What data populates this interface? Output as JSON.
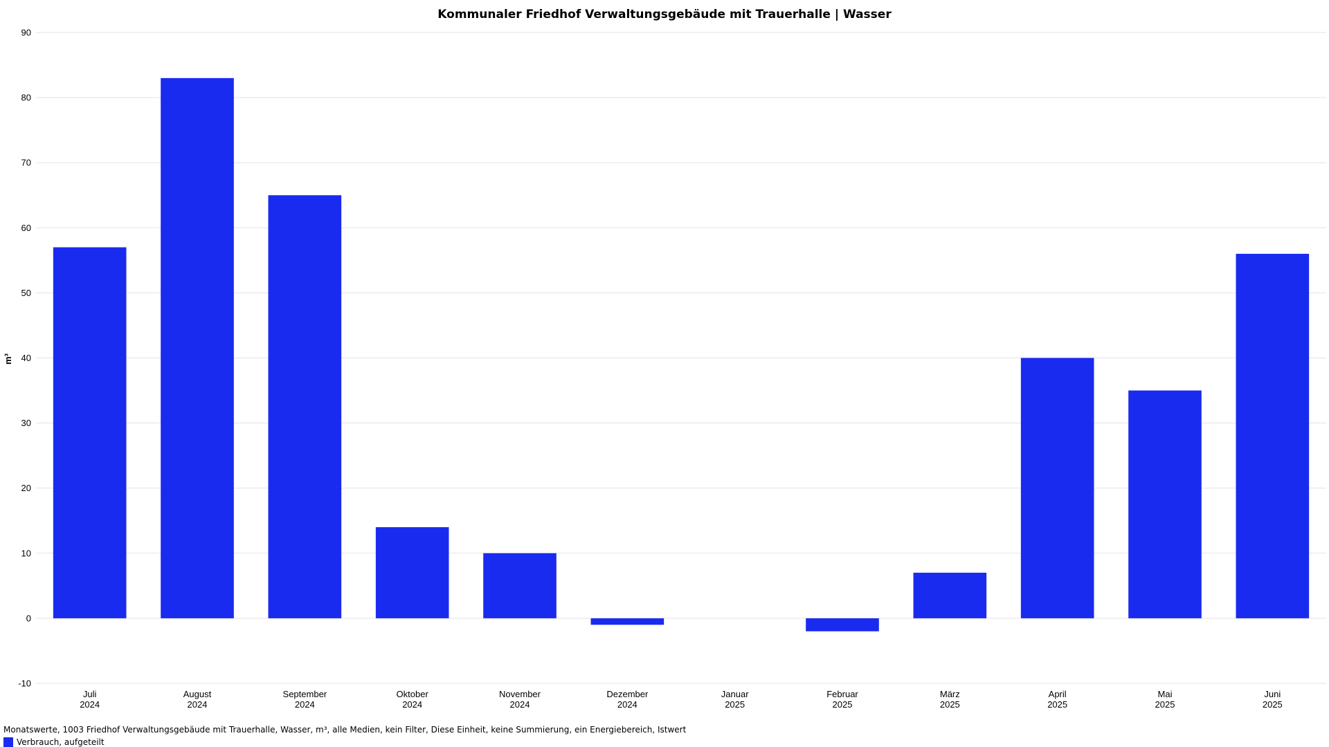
{
  "chart_data": {
    "type": "bar",
    "title": "Kommunaler Friedhof Verwaltungsgebäude mit Trauerhalle | Wasser",
    "ylabel": "m³",
    "xlabel": "",
    "ylim": [
      -10,
      90
    ],
    "yticks": [
      90,
      80,
      70,
      60,
      50,
      40,
      30,
      20,
      10,
      0,
      -10
    ],
    "grid": true,
    "legend_position": "bottom-left",
    "bar_color": "#1a2bf0",
    "categories": [
      {
        "month": "Juli",
        "year": "2024"
      },
      {
        "month": "August",
        "year": "2024"
      },
      {
        "month": "September",
        "year": "2024"
      },
      {
        "month": "Oktober",
        "year": "2024"
      },
      {
        "month": "November",
        "year": "2024"
      },
      {
        "month": "Dezember",
        "year": "2024"
      },
      {
        "month": "Januar",
        "year": "2025"
      },
      {
        "month": "Februar",
        "year": "2025"
      },
      {
        "month": "März",
        "year": "2025"
      },
      {
        "month": "April",
        "year": "2025"
      },
      {
        "month": "Mai",
        "year": "2025"
      },
      {
        "month": "Juni",
        "year": "2025"
      }
    ],
    "series": [
      {
        "name": "Verbrauch, aufgeteilt",
        "values": [
          57,
          83,
          65,
          14,
          10,
          -1,
          0,
          -2,
          7,
          40,
          35,
          56
        ]
      }
    ]
  },
  "footer": {
    "description": "Monatswerte, 1003 Friedhof Verwaltungsgebäude mit Trauerhalle, Wasser, m³, alle Medien, kein Filter, Diese Einheit, keine Summierung, ein Energiebereich, Istwert"
  },
  "legend": {
    "label": "Verbrauch, aufgeteilt",
    "color": "#1a2bf0"
  }
}
